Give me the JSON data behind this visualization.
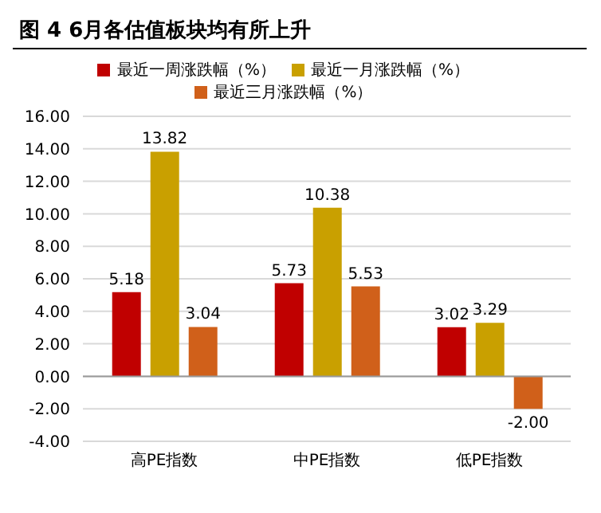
{
  "chart_data": {
    "type": "bar",
    "title": "图 4 6月各估值板块均有所上升",
    "categories": [
      "高PE指数",
      "中PE指数",
      "低PE指数"
    ],
    "series": [
      {
        "name": "最近一周涨跌幅（%）",
        "color": "#c00000",
        "values": [
          5.18,
          5.73,
          3.02
        ],
        "value_labels": [
          "5.18",
          "5.73",
          "3.02"
        ]
      },
      {
        "name": "最近一月涨跌幅（%）",
        "color": "#c9a000",
        "values": [
          13.82,
          10.38,
          3.29
        ],
        "value_labels": [
          "13.82",
          "10.38",
          "3.29"
        ]
      },
      {
        "name": "最近三月涨跌幅（%）",
        "color": "#d0601a",
        "values": [
          3.04,
          5.53,
          -2.0
        ],
        "value_labels": [
          "3.04",
          "5.53",
          "-2.00"
        ]
      }
    ],
    "ylim": [
      -4,
      16
    ],
    "yticks": [
      {
        "value": -4,
        "label": "-4.00"
      },
      {
        "value": -2,
        "label": "-2.00"
      },
      {
        "value": 0,
        "label": "0.00"
      },
      {
        "value": 2,
        "label": "2.00"
      },
      {
        "value": 4,
        "label": "4.00"
      },
      {
        "value": 6,
        "label": "6.00"
      },
      {
        "value": 8,
        "label": "8.00"
      },
      {
        "value": 10,
        "label": "10.00"
      },
      {
        "value": 12,
        "label": "12.00"
      },
      {
        "value": 14,
        "label": "14.00"
      },
      {
        "value": 16,
        "label": "16.00"
      }
    ],
    "grid": "y",
    "legend": "top"
  }
}
